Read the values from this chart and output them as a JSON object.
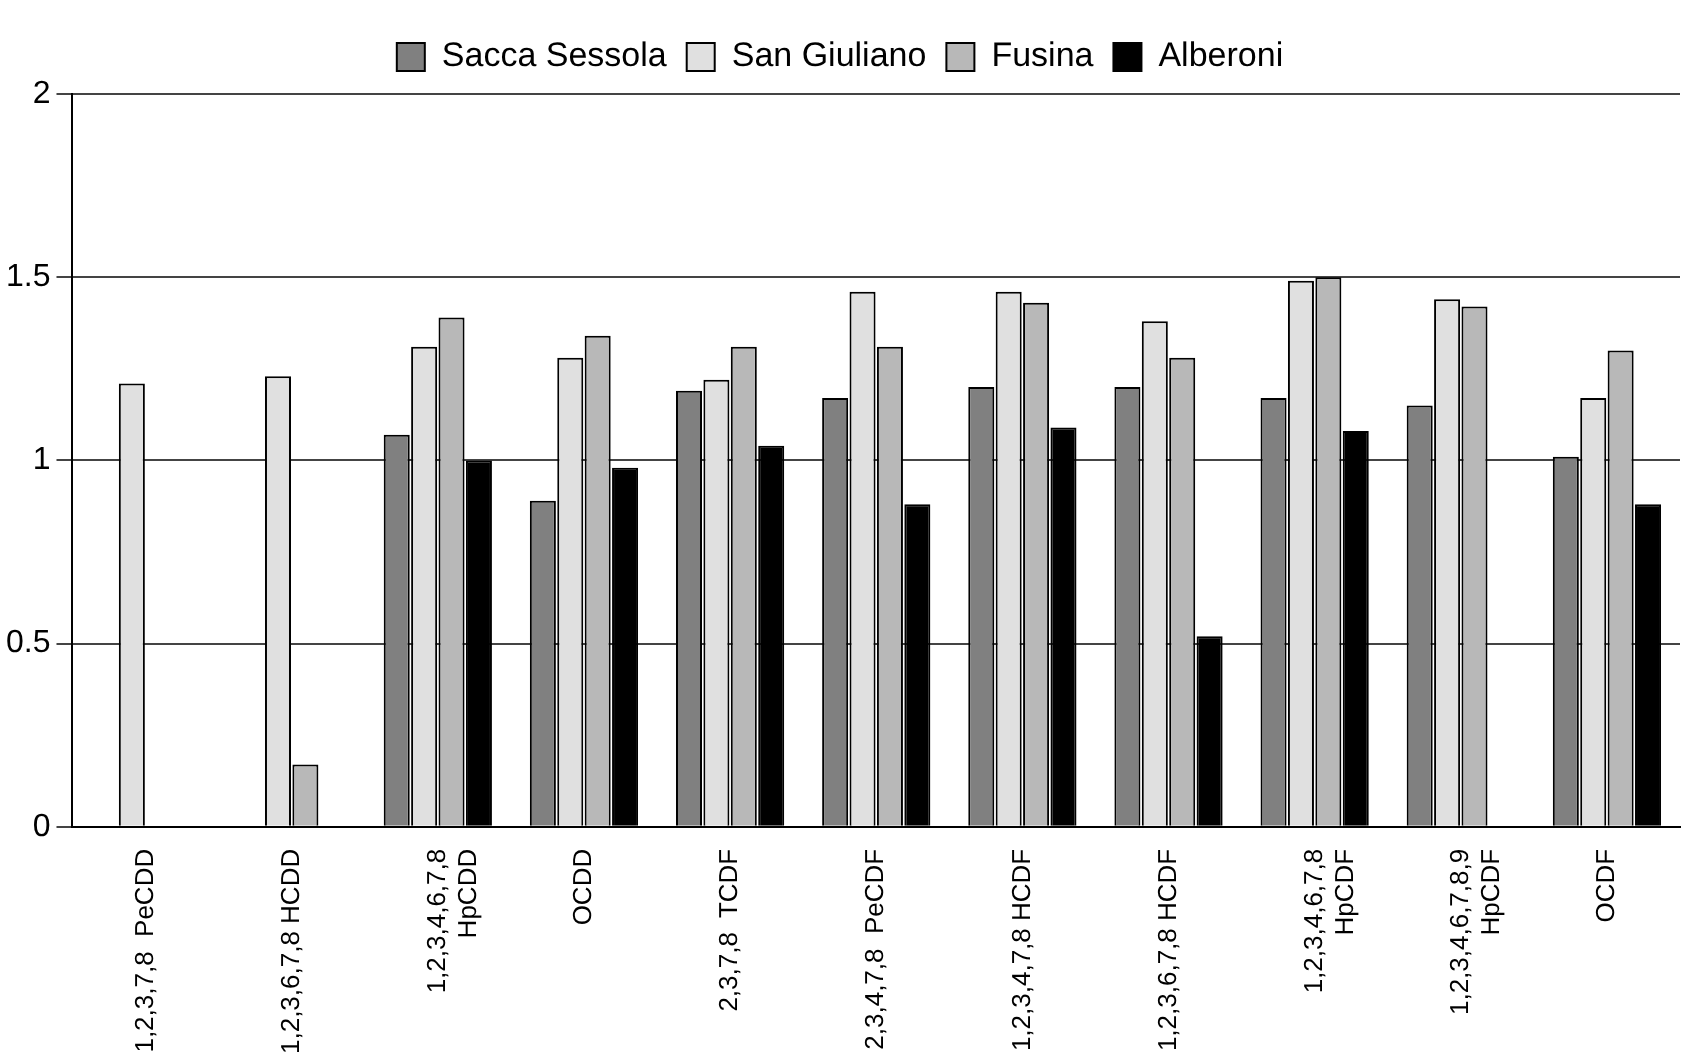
{
  "chart_data": {
    "type": "bar",
    "categories": [
      "1,2,3,7,8  PeCDD",
      "1,2,3,6,7,8 HCDD",
      "1,2,3,4,6,7,8\nHpCDD",
      "OCDD",
      "2,3,7,8  TCDF",
      "2,3,4,7,8  PeCDF",
      "1,2,3,4,7,8 HCDF",
      "1,2,3,6,7,8 HCDF",
      "1,2,3,4,6,7,8\nHpCDF",
      "1,2,3,4,6,7,8,9\nHpCDF",
      "OCDF"
    ],
    "series": [
      {
        "name": "Sacca Sessola",
        "color": "#808080",
        "values": [
          null,
          null,
          1.07,
          0.89,
          1.19,
          1.17,
          1.2,
          1.2,
          1.17,
          1.15,
          1.01
        ]
      },
      {
        "name": "San Giuliano",
        "color": "#e0e0e0",
        "values": [
          1.21,
          1.23,
          1.31,
          1.28,
          1.22,
          1.46,
          1.46,
          1.38,
          1.49,
          1.44,
          1.17
        ]
      },
      {
        "name": "Fusina",
        "color": "#b8b8b8",
        "values": [
          null,
          0.17,
          1.39,
          1.34,
          1.31,
          1.31,
          1.43,
          1.28,
          1.5,
          1.42,
          1.3
        ]
      },
      {
        "name": "Alberoni",
        "color": "#000000",
        "values": [
          null,
          null,
          1.0,
          0.98,
          1.04,
          0.88,
          1.09,
          0.52,
          1.08,
          null,
          0.88
        ]
      }
    ],
    "ylim": [
      0,
      2
    ],
    "yticks": [
      0,
      0.5,
      1,
      1.5,
      2
    ],
    "grid": "y",
    "legend": "top"
  }
}
